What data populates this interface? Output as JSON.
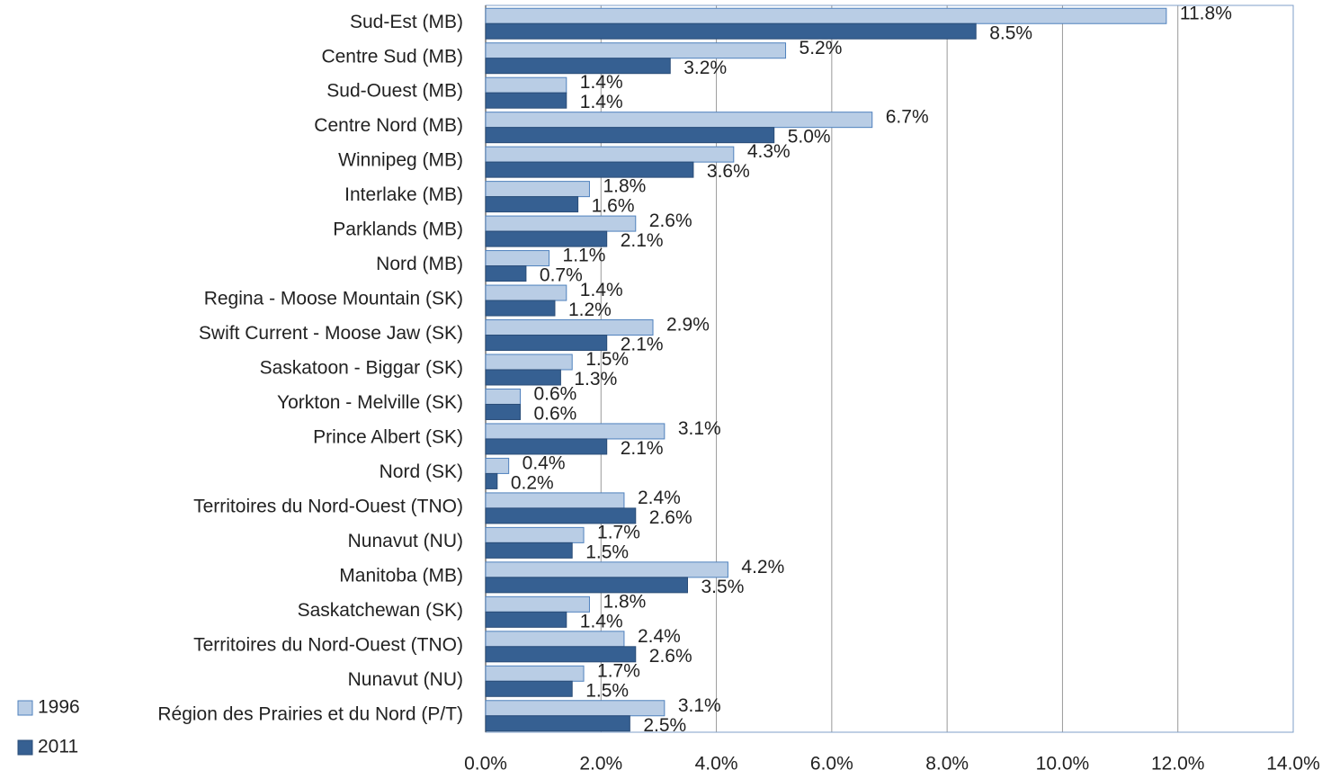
{
  "chart_data": {
    "type": "bar",
    "orientation": "horizontal",
    "categories": [
      "Sud-Est (MB)",
      "Centre Sud (MB)",
      "Sud-Ouest (MB)",
      "Centre Nord (MB)",
      "Winnipeg (MB)",
      "Interlake (MB)",
      "Parklands (MB)",
      "Nord (MB)",
      "Regina - Moose Mountain (SK)",
      "Swift Current - Moose Jaw (SK)",
      "Saskatoon - Biggar (SK)",
      "Yorkton - Melville (SK)",
      "Prince Albert (SK)",
      "Nord (SK)",
      "Territoires du Nord-Ouest (TNO)",
      "Nunavut (NU)",
      "Manitoba (MB)",
      "Saskatchewan (SK)",
      "Territoires du Nord-Ouest (TNO)",
      "Nunavut (NU)",
      "Région des Prairies et du Nord (P/T)"
    ],
    "series": [
      {
        "name": "1996",
        "color": "#b9cde5",
        "stroke": "#4f81bd",
        "values": [
          11.8,
          5.2,
          1.4,
          6.7,
          4.3,
          1.8,
          2.6,
          1.1,
          1.4,
          2.9,
          1.5,
          0.6,
          3.1,
          0.4,
          2.4,
          1.7,
          4.2,
          1.8,
          2.4,
          1.7,
          3.1
        ],
        "value_labels": [
          "11.8%",
          "5.2%",
          "1.4%",
          "6.7%",
          "4.3%",
          "1.8%",
          "2.6%",
          "1.1%",
          "1.4%",
          "2.9%",
          "1.5%",
          "0.6%",
          "3.1%",
          "0.4%",
          "2.4%",
          "1.7%",
          "4.2%",
          "1.8%",
          "2.4%",
          "1.7%",
          "3.1%"
        ]
      },
      {
        "name": "2011",
        "color": "#366092",
        "stroke": "#2a4d78",
        "values": [
          8.5,
          3.2,
          1.4,
          5.0,
          3.6,
          1.6,
          2.1,
          0.7,
          1.2,
          2.1,
          1.3,
          0.6,
          2.1,
          0.2,
          2.6,
          1.5,
          3.5,
          1.4,
          2.6,
          1.5,
          2.5
        ],
        "value_labels": [
          "8.5%",
          "3.2%",
          "1.4%",
          "5.0%",
          "3.6%",
          "1.6%",
          "2.1%",
          "0.7%",
          "1.2%",
          "2.1%",
          "1.3%",
          "0.6%",
          "2.1%",
          "0.2%",
          "2.6%",
          "1.5%",
          "3.5%",
          "1.4%",
          "2.6%",
          "1.5%",
          "2.5%"
        ]
      }
    ],
    "xlim": [
      0,
      14
    ],
    "xticks": [
      {
        "value": 0,
        "label": "0.0%"
      },
      {
        "value": 2,
        "label": "2.0%"
      },
      {
        "value": 4,
        "label": "4.0%"
      },
      {
        "value": 6,
        "label": "6.0%"
      },
      {
        "value": 8,
        "label": "8.0%"
      },
      {
        "value": 10,
        "label": "10.0%"
      },
      {
        "value": 12,
        "label": "12.0%"
      },
      {
        "value": 14,
        "label": "14.0%"
      }
    ],
    "grid": true
  }
}
